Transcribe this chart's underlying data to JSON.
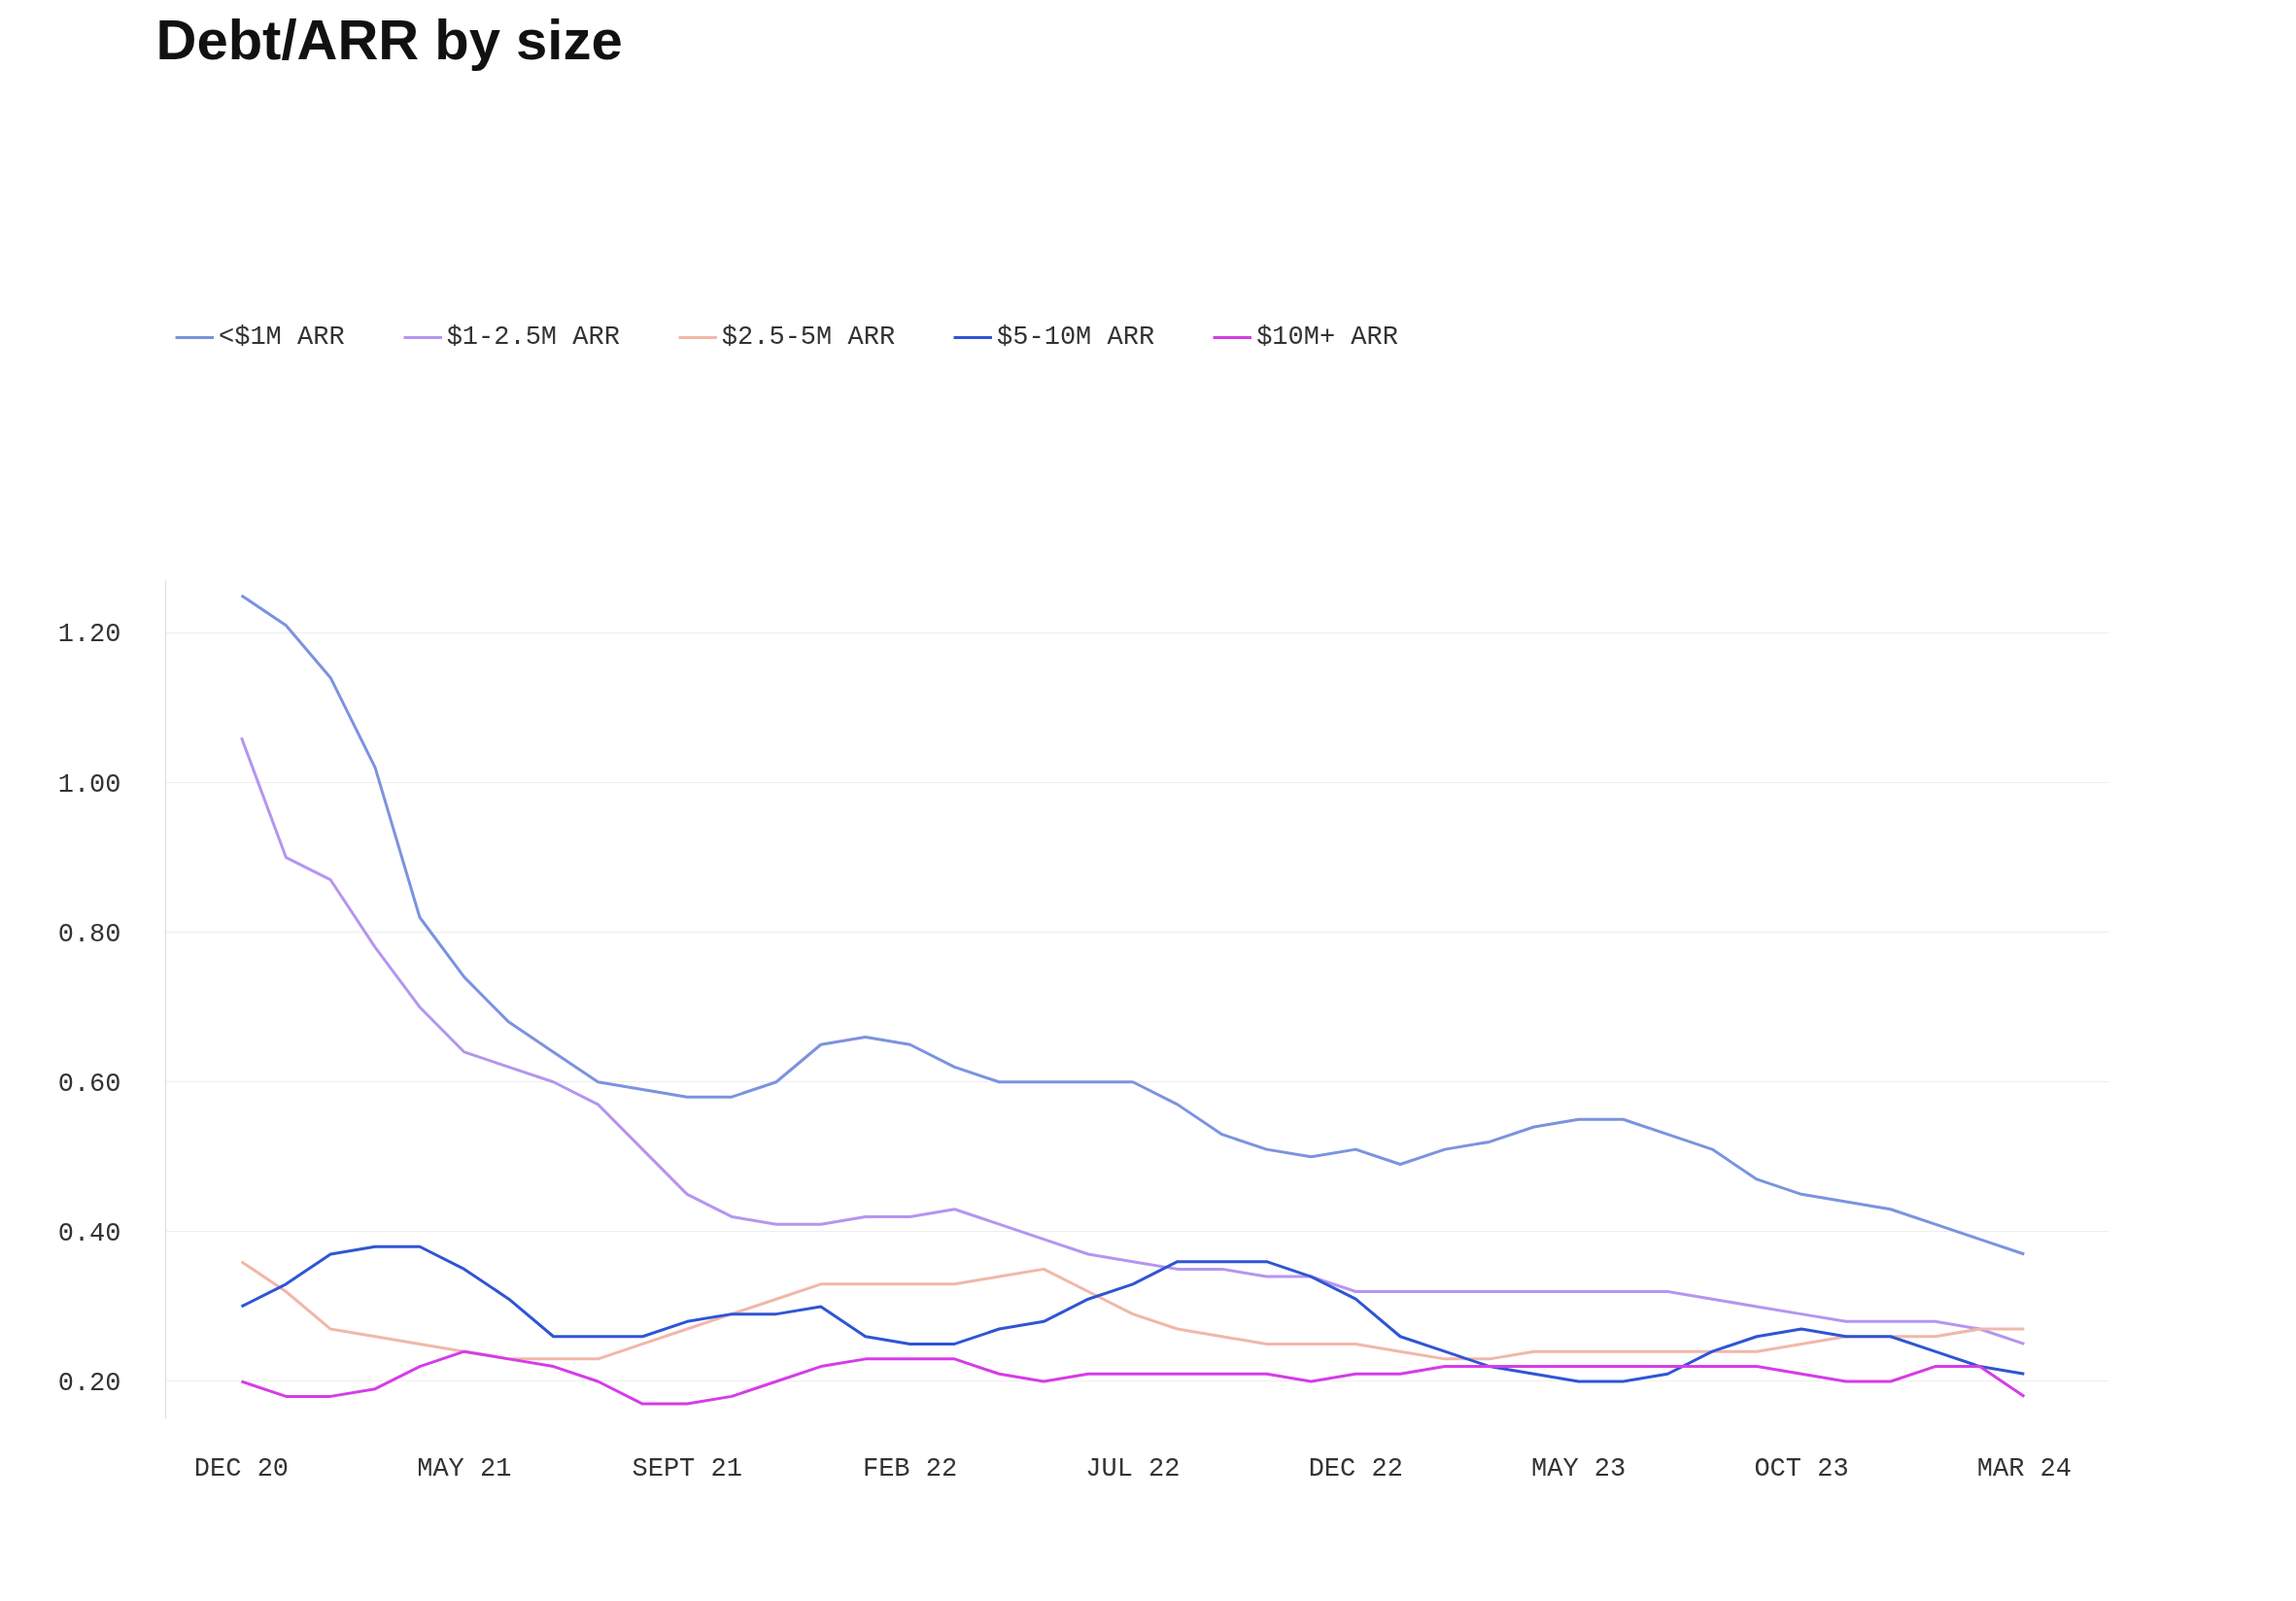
{
  "chart_data": {
    "type": "line",
    "title": "Debt/ARR by size",
    "categories": [
      "DEC 20",
      null,
      null,
      null,
      null,
      "MAY 21",
      null,
      null,
      null,
      null,
      "SEPT 21",
      null,
      null,
      null,
      null,
      "FEB 22",
      null,
      null,
      null,
      null,
      "JUL 22",
      null,
      null,
      null,
      null,
      "DEC 22",
      null,
      null,
      null,
      null,
      "MAY 23",
      null,
      null,
      null,
      null,
      "OCT 23",
      null,
      null,
      null,
      null,
      "MAR 24"
    ],
    "series": [
      {
        "name": "<$1M ARR",
        "color": "#7b93e0",
        "values": [
          1.25,
          1.21,
          1.14,
          1.02,
          0.82,
          0.74,
          0.68,
          0.64,
          0.6,
          0.59,
          0.58,
          0.58,
          0.6,
          0.65,
          0.66,
          0.65,
          0.62,
          0.6,
          0.6,
          0.6,
          0.6,
          0.57,
          0.53,
          0.51,
          0.5,
          0.51,
          0.49,
          0.51,
          0.52,
          0.54,
          0.55,
          0.55,
          0.53,
          0.51,
          0.47,
          0.45,
          0.44,
          0.43,
          0.41,
          0.39,
          0.37
        ]
      },
      {
        "name": "$1-2.5M ARR",
        "color": "#b595f0",
        "values": [
          1.06,
          0.9,
          0.87,
          0.78,
          0.7,
          0.64,
          0.62,
          0.6,
          0.57,
          0.51,
          0.45,
          0.42,
          0.41,
          0.41,
          0.42,
          0.42,
          0.43,
          0.41,
          0.39,
          0.37,
          0.36,
          0.35,
          0.35,
          0.34,
          0.34,
          0.32,
          0.32,
          0.32,
          0.32,
          0.32,
          0.32,
          0.32,
          0.32,
          0.31,
          0.3,
          0.29,
          0.28,
          0.28,
          0.28,
          0.27,
          0.25
        ]
      },
      {
        "name": "$2.5-5M ARR",
        "color": "#f0b8a8",
        "values": [
          0.36,
          0.32,
          0.27,
          0.26,
          0.25,
          0.24,
          0.23,
          0.23,
          0.23,
          0.25,
          0.27,
          0.29,
          0.31,
          0.33,
          0.33,
          0.33,
          0.33,
          0.34,
          0.35,
          0.32,
          0.29,
          0.27,
          0.26,
          0.25,
          0.25,
          0.25,
          0.24,
          0.23,
          0.23,
          0.24,
          0.24,
          0.24,
          0.24,
          0.24,
          0.24,
          0.25,
          0.26,
          0.26,
          0.26,
          0.27,
          0.27
        ]
      },
      {
        "name": "$5-10M ARR",
        "color": "#2f55d4",
        "values": [
          0.3,
          0.33,
          0.37,
          0.38,
          0.38,
          0.35,
          0.31,
          0.26,
          0.26,
          0.26,
          0.28,
          0.29,
          0.29,
          0.3,
          0.26,
          0.25,
          0.25,
          0.27,
          0.28,
          0.31,
          0.33,
          0.36,
          0.36,
          0.36,
          0.34,
          0.31,
          0.26,
          0.24,
          0.22,
          0.21,
          0.2,
          0.2,
          0.21,
          0.24,
          0.26,
          0.27,
          0.26,
          0.26,
          0.24,
          0.22,
          0.21
        ]
      },
      {
        "name": "$10M+ ARR",
        "color": "#d63ce8",
        "values": [
          0.2,
          0.18,
          0.18,
          0.19,
          0.22,
          0.24,
          0.23,
          0.22,
          0.2,
          0.17,
          0.17,
          0.18,
          0.2,
          0.22,
          0.23,
          0.23,
          0.23,
          0.21,
          0.2,
          0.21,
          0.21,
          0.21,
          0.21,
          0.21,
          0.2,
          0.21,
          0.21,
          0.22,
          0.22,
          0.22,
          0.22,
          0.22,
          0.22,
          0.22,
          0.22,
          0.21,
          0.2,
          0.2,
          0.22,
          0.22,
          0.18
        ]
      }
    ],
    "ylim": [
      0.15,
      1.27
    ],
    "yticks": [
      {
        "value": 0.2,
        "label": "0.20"
      },
      {
        "value": 0.4,
        "label": "0.40"
      },
      {
        "value": 0.6,
        "label": "0.60"
      },
      {
        "value": 0.8,
        "label": "0.80"
      },
      {
        "value": 1.0,
        "label": "1.00"
      },
      {
        "value": 1.2,
        "label": "1.20"
      }
    ],
    "grid": "y",
    "legend": "top left",
    "marker": "none",
    "line_style": "solid"
  }
}
